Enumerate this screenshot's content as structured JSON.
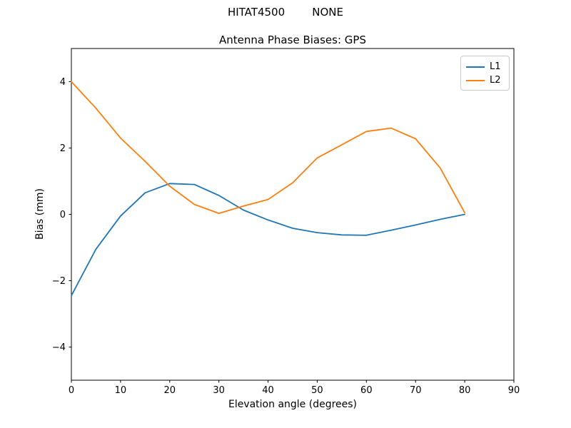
{
  "figure": {
    "suptitle": "HITAT4500        NONE"
  },
  "chart_data": {
    "type": "line",
    "title": "Antenna Phase Biases: GPS",
    "xlabel": "Elevation angle (degrees)",
    "ylabel": "Bias (mm)",
    "xlim": [
      0,
      90
    ],
    "ylim": [
      -5,
      5
    ],
    "xticks": [
      0,
      10,
      20,
      30,
      40,
      50,
      60,
      70,
      80,
      90
    ],
    "xtick_labels": [
      "0",
      "10",
      "20",
      "30",
      "40",
      "50",
      "60",
      "70",
      "80",
      "90"
    ],
    "yticks": [
      -4,
      -2,
      0,
      2,
      4
    ],
    "ytick_labels": [
      "−4",
      "−2",
      "0",
      "2",
      "4"
    ],
    "grid": false,
    "legend_position": "upper right",
    "x": [
      0,
      5,
      10,
      15,
      20,
      25,
      30,
      35,
      40,
      45,
      50,
      55,
      60,
      65,
      70,
      75,
      80
    ],
    "series": [
      {
        "name": "L1",
        "color": "#1f77b4",
        "values": [
          -2.45,
          -1.05,
          -0.05,
          0.65,
          0.93,
          0.9,
          0.57,
          0.13,
          -0.17,
          -0.42,
          -0.55,
          -0.62,
          -0.63,
          -0.48,
          -0.32,
          -0.15,
          0.0
        ]
      },
      {
        "name": "L2",
        "color": "#ff7f0e",
        "values": [
          4.0,
          3.2,
          2.3,
          1.6,
          0.85,
          0.3,
          0.03,
          0.25,
          0.45,
          0.95,
          1.7,
          2.1,
          2.5,
          2.6,
          2.28,
          1.4,
          0.05
        ]
      }
    ]
  }
}
